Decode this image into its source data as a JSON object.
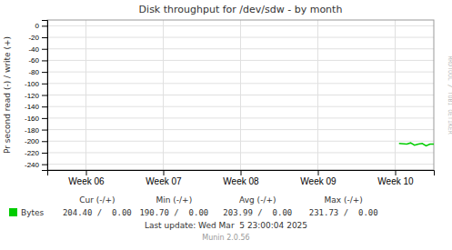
{
  "chart_data": {
    "type": "line",
    "title": "Disk throughput for /dev/sdw - by month",
    "y_label": "Pr second read (-) / write (+)",
    "x": [
      4.55,
      4.65,
      4.7,
      4.75,
      4.8,
      4.85,
      4.9,
      4.95,
      5.0
    ],
    "series": [
      {
        "name": "Bytes",
        "color": "#00CC00",
        "values": [
          -204,
          -205,
          -203,
          -207,
          -205,
          -204,
          -208,
          -205,
          -205
        ]
      }
    ],
    "xlim": [
      0,
      5
    ],
    "xticks": [
      {
        "value": 0.5,
        "label": "Week 06"
      },
      {
        "value": 1.5,
        "label": "Week 07"
      },
      {
        "value": 2.5,
        "label": "Week 08"
      },
      {
        "value": 3.5,
        "label": "Week 09"
      },
      {
        "value": 4.5,
        "label": "Week 10"
      }
    ],
    "ylim": [
      -250,
      10
    ],
    "yticks": [
      0,
      -20,
      -40,
      -60,
      -80,
      -100,
      -120,
      -140,
      -160,
      -180,
      -200,
      -220,
      -240
    ],
    "grid": true,
    "legend": "bottom",
    "annotations": [
      "RRDTOOL / TOBI OETIKER",
      "Cur (-/+)",
      "Min (-/+)",
      "Avg (-/+)",
      "Max (-/+)",
      "204.40 /  0.00",
      "190.70 /  0.00",
      "203.99 /  0.00",
      "231.73 /  0.00",
      "Last update: Wed Mar  5 23:00:04 2025",
      "Munin 2.0.56"
    ]
  }
}
